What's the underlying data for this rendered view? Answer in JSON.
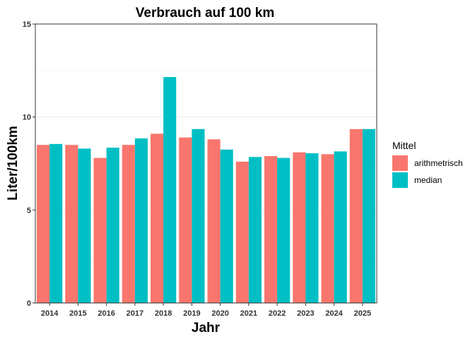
{
  "chart_data": {
    "type": "bar",
    "title": "Verbrauch auf 100 km",
    "xlabel": "Jahr",
    "ylabel": "Liter/100km",
    "categories": [
      "2014",
      "2015",
      "2016",
      "2017",
      "2018",
      "2019",
      "2020",
      "2021",
      "2022",
      "2023",
      "2024",
      "2025"
    ],
    "series": [
      {
        "name": "arithmetrisch",
        "color": "#f8766d",
        "values": [
          8.5,
          8.5,
          7.8,
          8.5,
          9.1,
          8.9,
          8.8,
          7.6,
          7.9,
          8.1,
          8.0,
          9.35
        ]
      },
      {
        "name": "median",
        "color": "#00bfc4",
        "values": [
          8.55,
          8.3,
          8.35,
          8.85,
          12.15,
          9.35,
          8.25,
          7.85,
          7.8,
          8.05,
          8.15,
          9.35
        ]
      }
    ],
    "ylim": [
      0,
      15
    ],
    "yticks": [
      0,
      5,
      10,
      15
    ],
    "grid": true,
    "legend": {
      "title": "Mittel",
      "placement": "right"
    }
  }
}
